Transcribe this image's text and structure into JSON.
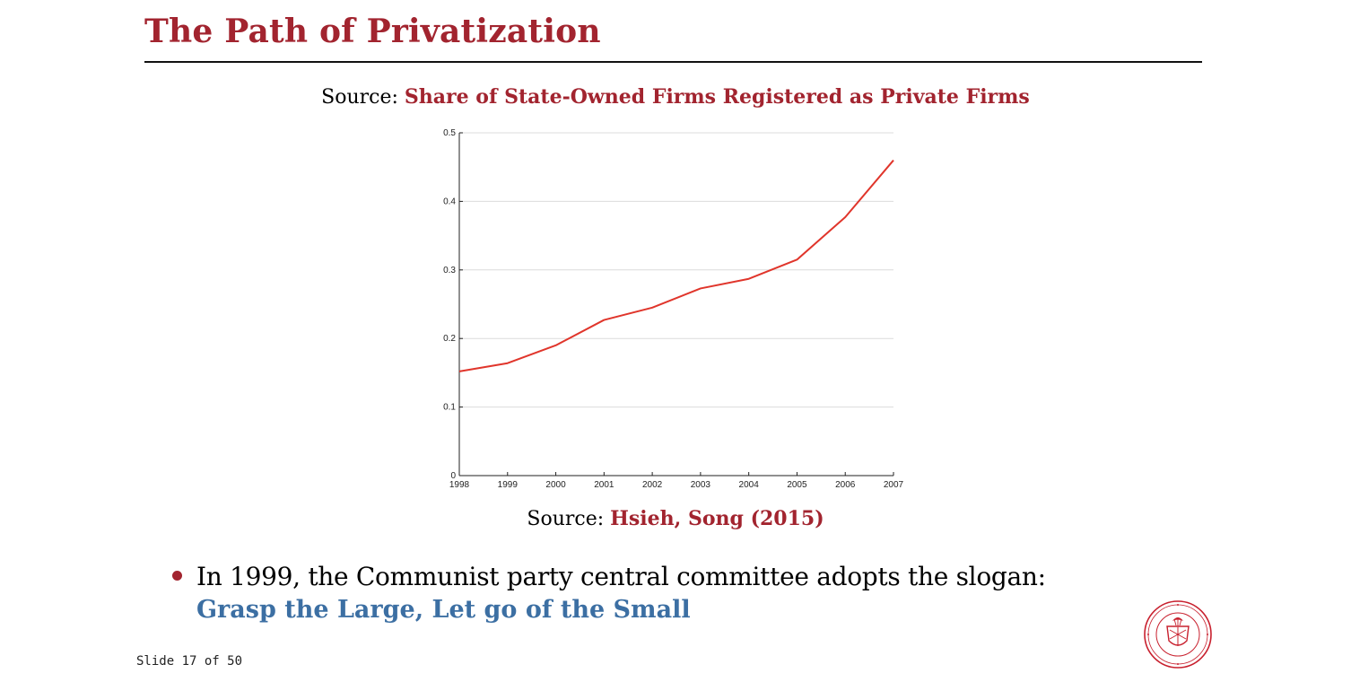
{
  "slide": {
    "title": "The Path of Privatization",
    "top_caption_prefix": "Source: ",
    "top_caption_accent": "Share of State-Owned Firms Registered as Private Firms",
    "bottom_caption_prefix": "Source: ",
    "bottom_caption_accent": "Hsieh, Song (2015)",
    "bullet_text": "In 1999, the Communist party central committee adopts the slogan:",
    "slogan": "Grasp the Large, Let go of the Small",
    "footer": "Slide 17 of 50",
    "seal_icon": "university-seal-icon",
    "colors": {
      "accent": "#a2242f",
      "slogan": "#3c6fa3",
      "line": "#e0352b"
    }
  },
  "chart_data": {
    "type": "line",
    "title": "",
    "xlabel": "",
    "ylabel": "",
    "x": [
      1998,
      1999,
      2000,
      2001,
      2002,
      2003,
      2004,
      2005,
      2006,
      2007
    ],
    "series": [
      {
        "values": [
          0.152,
          0.164,
          0.19,
          0.227,
          0.245,
          0.273,
          0.287,
          0.315,
          0.377,
          0.46
        ]
      }
    ],
    "xlim": [
      1998,
      2007
    ],
    "ylim": [
      0,
      0.5
    ],
    "yticks": [
      0,
      0.1,
      0.2,
      0.3,
      0.4,
      0.5
    ],
    "ytick_labels": [
      "0",
      "0.1",
      "0.2",
      "0.3",
      "0.4",
      "0.5"
    ],
    "xtick_labels": [
      "1998",
      "1999",
      "2000",
      "2001",
      "2002",
      "2003",
      "2004",
      "2005",
      "2006",
      "2007"
    ],
    "grid": true,
    "legend": "none"
  }
}
